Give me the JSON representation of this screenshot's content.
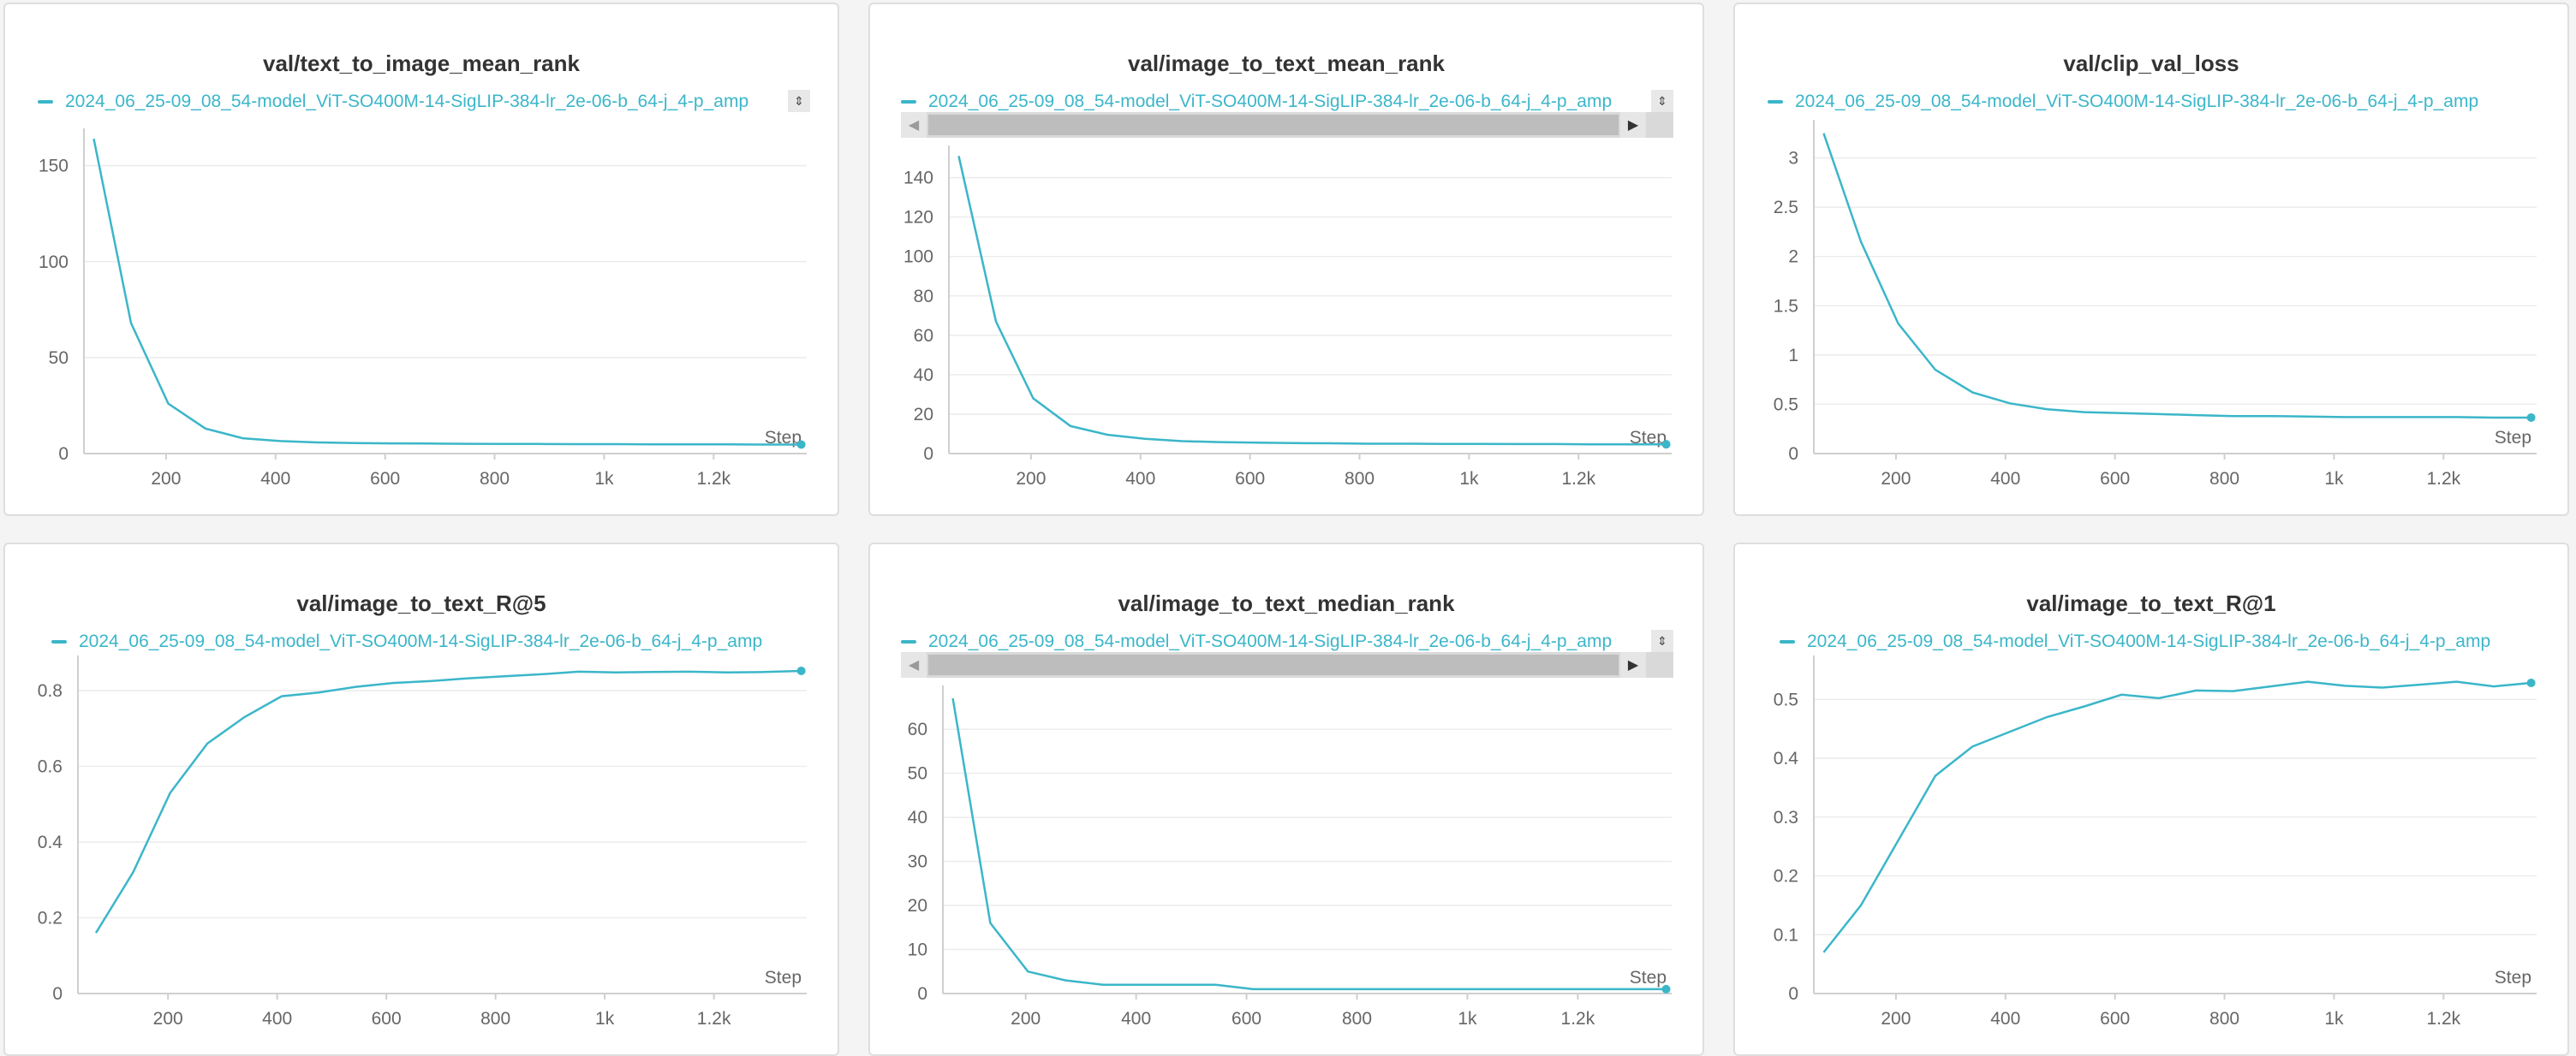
{
  "colors": {
    "series": "#3bb6c9",
    "background": "#f4f4f4",
    "panel": "#ffffff"
  },
  "icons": {
    "legend_scroll": "up-down-arrows-icon",
    "scroll_left": "triangle-left-icon",
    "scroll_right": "triangle-right-icon"
  },
  "chart_data": [
    {
      "type": "line",
      "title": "val/text_to_image_mean_rank",
      "xlabel": "Step",
      "ylabel": "",
      "legend": "top",
      "grid": true,
      "xlim": [
        50,
        1370
      ],
      "ylim": [
        0,
        165
      ],
      "xticks": [
        {
          "v": 200,
          "t": "200"
        },
        {
          "v": 400,
          "t": "400"
        },
        {
          "v": 600,
          "t": "600"
        },
        {
          "v": 800,
          "t": "800"
        },
        {
          "v": 1000,
          "t": "1k"
        },
        {
          "v": 1200,
          "t": "1.2k"
        }
      ],
      "yticks": [
        {
          "v": 0,
          "t": "0"
        },
        {
          "v": 50,
          "t": "50"
        },
        {
          "v": 100,
          "t": "100"
        },
        {
          "v": 150,
          "t": "150"
        }
      ],
      "series": [
        {
          "name": "2024_06_25-09_08_54-model_ViT-SO400M-14-SigLIP-384-lr_2e-06-b_64-j_4-p_amp",
          "x": [
            68,
            136,
            204,
            272,
            340,
            408,
            476,
            544,
            612,
            680,
            748,
            816,
            884,
            952,
            1020,
            1088,
            1156,
            1224,
            1292,
            1360
          ],
          "y": [
            164,
            68,
            26,
            13,
            8,
            6.5,
            5.8,
            5.5,
            5.3,
            5.2,
            5.1,
            5.0,
            5.0,
            4.9,
            4.9,
            4.8,
            4.8,
            4.8,
            4.7,
            4.7
          ]
        }
      ]
    },
    {
      "type": "line",
      "title": "val/image_to_text_mean_rank",
      "xlabel": "Step",
      "ylabel": "",
      "legend": "top",
      "grid": true,
      "xlim": [
        50,
        1370
      ],
      "ylim": [
        0,
        152
      ],
      "xticks": [
        {
          "v": 200,
          "t": "200"
        },
        {
          "v": 400,
          "t": "400"
        },
        {
          "v": 600,
          "t": "600"
        },
        {
          "v": 800,
          "t": "800"
        },
        {
          "v": 1000,
          "t": "1k"
        },
        {
          "v": 1200,
          "t": "1.2k"
        }
      ],
      "yticks": [
        {
          "v": 0,
          "t": "0"
        },
        {
          "v": 20,
          "t": "20"
        },
        {
          "v": 40,
          "t": "40"
        },
        {
          "v": 60,
          "t": "60"
        },
        {
          "v": 80,
          "t": "80"
        },
        {
          "v": 100,
          "t": "100"
        },
        {
          "v": 120,
          "t": "120"
        },
        {
          "v": 140,
          "t": "140"
        }
      ],
      "series": [
        {
          "name": "2024_06_25-09_08_54-model_ViT-SO400M-14-SigLIP-384-lr_2e-06-b_64-j_4-p_amp",
          "x": [
            68,
            136,
            204,
            272,
            340,
            408,
            476,
            544,
            612,
            680,
            748,
            816,
            884,
            952,
            1020,
            1088,
            1156,
            1224,
            1292,
            1360
          ],
          "y": [
            151,
            67,
            28,
            14,
            9.5,
            7.5,
            6.3,
            5.8,
            5.5,
            5.3,
            5.2,
            5.0,
            5.0,
            4.9,
            4.9,
            4.8,
            4.8,
            4.7,
            4.7,
            4.7
          ]
        }
      ]
    },
    {
      "type": "line",
      "title": "val/clip_val_loss",
      "xlabel": "Step",
      "ylabel": "",
      "legend": "top",
      "grid": true,
      "xlim": [
        50,
        1370
      ],
      "ylim": [
        0,
        3.3
      ],
      "xticks": [
        {
          "v": 200,
          "t": "200"
        },
        {
          "v": 400,
          "t": "400"
        },
        {
          "v": 600,
          "t": "600"
        },
        {
          "v": 800,
          "t": "800"
        },
        {
          "v": 1000,
          "t": "1k"
        },
        {
          "v": 1200,
          "t": "1.2k"
        }
      ],
      "yticks": [
        {
          "v": 0,
          "t": "0"
        },
        {
          "v": 0.5,
          "t": "0.5"
        },
        {
          "v": 1,
          "t": "1"
        },
        {
          "v": 1.5,
          "t": "1.5"
        },
        {
          "v": 2,
          "t": "2"
        },
        {
          "v": 2.5,
          "t": "2.5"
        },
        {
          "v": 3,
          "t": "3"
        }
      ],
      "series": [
        {
          "name": "2024_06_25-09_08_54-model_ViT-SO400M-14-SigLIP-384-lr_2e-06-b_64-j_4-p_amp",
          "x": [
            68,
            136,
            204,
            272,
            340,
            408,
            476,
            544,
            612,
            680,
            748,
            816,
            884,
            952,
            1020,
            1088,
            1156,
            1224,
            1292,
            1360
          ],
          "y": [
            3.25,
            2.15,
            1.32,
            0.85,
            0.62,
            0.51,
            0.45,
            0.42,
            0.41,
            0.4,
            0.39,
            0.38,
            0.38,
            0.375,
            0.37,
            0.37,
            0.37,
            0.37,
            0.365,
            0.365
          ]
        }
      ]
    },
    {
      "type": "line",
      "title": "val/image_to_text_R@5",
      "xlabel": "Step",
      "ylabel": "",
      "legend": "top",
      "grid": true,
      "xlim": [
        35,
        1370
      ],
      "ylim": [
        0,
        0.87
      ],
      "xticks": [
        {
          "v": 200,
          "t": "200"
        },
        {
          "v": 400,
          "t": "400"
        },
        {
          "v": 600,
          "t": "600"
        },
        {
          "v": 800,
          "t": "800"
        },
        {
          "v": 1000,
          "t": "1k"
        },
        {
          "v": 1200,
          "t": "1.2k"
        }
      ],
      "yticks": [
        {
          "v": 0,
          "t": "0"
        },
        {
          "v": 0.2,
          "t": "0.2"
        },
        {
          "v": 0.4,
          "t": "0.4"
        },
        {
          "v": 0.6,
          "t": "0.6"
        },
        {
          "v": 0.8,
          "t": "0.8"
        }
      ],
      "series": [
        {
          "name": "2024_06_25-09_08_54-model_ViT-SO400M-14-SigLIP-384-lr_2e-06-b_64-j_4-p_amp",
          "x": [
            68,
            136,
            204,
            272,
            340,
            408,
            476,
            544,
            612,
            680,
            748,
            816,
            884,
            952,
            1020,
            1088,
            1156,
            1224,
            1292,
            1360
          ],
          "y": [
            0.16,
            0.32,
            0.53,
            0.66,
            0.73,
            0.785,
            0.795,
            0.81,
            0.82,
            0.825,
            0.832,
            0.838,
            0.843,
            0.85,
            0.848,
            0.849,
            0.85,
            0.848,
            0.849,
            0.852
          ]
        }
      ]
    },
    {
      "type": "line",
      "title": "val/image_to_text_median_rank",
      "xlabel": "Step",
      "ylabel": "",
      "legend": "top",
      "grid": true,
      "xlim": [
        50,
        1370
      ],
      "ylim": [
        0,
        68
      ],
      "xticks": [
        {
          "v": 200,
          "t": "200"
        },
        {
          "v": 400,
          "t": "400"
        },
        {
          "v": 600,
          "t": "600"
        },
        {
          "v": 800,
          "t": "800"
        },
        {
          "v": 1000,
          "t": "1k"
        },
        {
          "v": 1200,
          "t": "1.2k"
        }
      ],
      "yticks": [
        {
          "v": 0,
          "t": "0"
        },
        {
          "v": 10,
          "t": "10"
        },
        {
          "v": 20,
          "t": "20"
        },
        {
          "v": 30,
          "t": "30"
        },
        {
          "v": 40,
          "t": "40"
        },
        {
          "v": 50,
          "t": "50"
        },
        {
          "v": 60,
          "t": "60"
        }
      ],
      "series": [
        {
          "name": "2024_06_25-09_08_54-model_ViT-SO400M-14-SigLIP-384-lr_2e-06-b_64-j_4-p_amp",
          "x": [
            68,
            136,
            204,
            272,
            340,
            408,
            476,
            544,
            612,
            680,
            748,
            816,
            884,
            952,
            1020,
            1088,
            1156,
            1224,
            1292,
            1360
          ],
          "y": [
            67,
            16,
            5,
            3,
            2,
            2,
            2,
            2,
            1,
            1,
            1,
            1,
            1,
            1,
            1,
            1,
            1,
            1,
            1,
            1
          ]
        }
      ]
    },
    {
      "type": "line",
      "title": "val/image_to_text_R@1",
      "xlabel": "Step",
      "ylabel": "",
      "legend": "top",
      "grid": true,
      "xlim": [
        50,
        1370
      ],
      "ylim": [
        0,
        0.56
      ],
      "xticks": [
        {
          "v": 200,
          "t": "200"
        },
        {
          "v": 400,
          "t": "400"
        },
        {
          "v": 600,
          "t": "600"
        },
        {
          "v": 800,
          "t": "800"
        },
        {
          "v": 1000,
          "t": "1k"
        },
        {
          "v": 1200,
          "t": "1.2k"
        }
      ],
      "yticks": [
        {
          "v": 0,
          "t": "0"
        },
        {
          "v": 0.1,
          "t": "0.1"
        },
        {
          "v": 0.2,
          "t": "0.2"
        },
        {
          "v": 0.3,
          "t": "0.3"
        },
        {
          "v": 0.4,
          "t": "0.4"
        },
        {
          "v": 0.5,
          "t": "0.5"
        }
      ],
      "series": [
        {
          "name": "2024_06_25-09_08_54-model_ViT-SO400M-14-SigLIP-384-lr_2e-06-b_64-j_4-p_amp",
          "x": [
            68,
            136,
            204,
            272,
            340,
            408,
            476,
            544,
            612,
            680,
            748,
            816,
            884,
            952,
            1020,
            1088,
            1156,
            1224,
            1292,
            1360
          ],
          "y": [
            0.07,
            0.15,
            0.26,
            0.37,
            0.42,
            0.445,
            0.47,
            0.488,
            0.508,
            0.502,
            0.515,
            0.514,
            0.522,
            0.53,
            0.523,
            0.52,
            0.525,
            0.53,
            0.522,
            0.528
          ]
        }
      ]
    }
  ]
}
